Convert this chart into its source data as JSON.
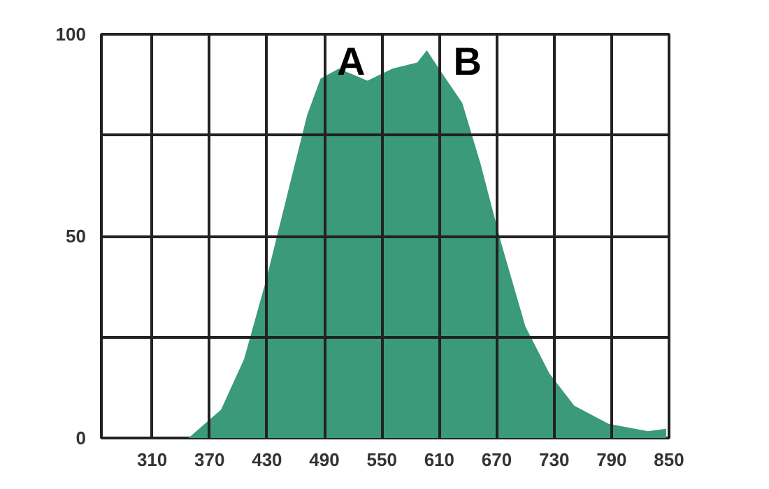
{
  "chart_data": {
    "type": "area",
    "x": [
      348,
      382,
      406,
      429,
      453,
      472,
      486,
      505,
      535,
      561,
      587,
      597,
      611,
      634,
      653,
      675,
      700,
      725,
      751,
      787,
      828,
      847
    ],
    "series": [
      {
        "color": "#3a9a7a",
        "values": [
          0,
          7,
          19.5,
          39,
          62,
          80,
          89,
          91.5,
          88.5,
          91.5,
          93,
          96,
          91,
          83,
          68,
          48,
          27.6,
          16,
          8,
          3.5,
          1.7,
          2.3
        ]
      }
    ],
    "xlim": [
      257,
      850
    ],
    "ylim": [
      0,
      100
    ],
    "xticks": [
      310,
      370,
      430,
      490,
      550,
      610,
      670,
      730,
      790,
      850
    ],
    "yticks": [
      0,
      {
        "value": 25,
        "label": null
      },
      50,
      {
        "value": 75,
        "label": null
      },
      100
    ],
    "grid": true,
    "annotations": [
      "A",
      "B"
    ]
  }
}
